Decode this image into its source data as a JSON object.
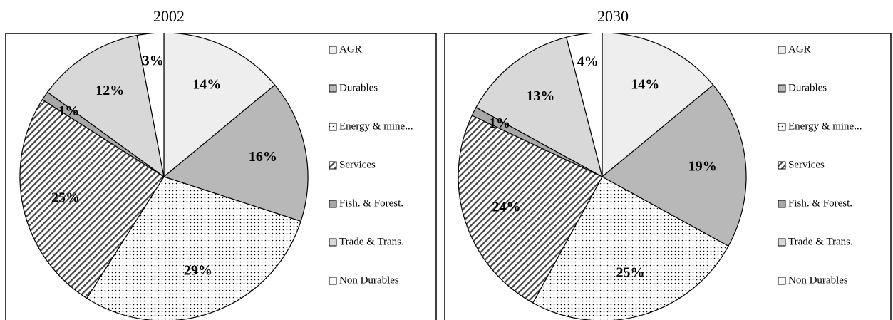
{
  "chart_data": [
    {
      "type": "pie",
      "title": "2002",
      "categories": [
        "AGR",
        "Durables",
        "Energy & mine...",
        "Services",
        "Fish. & Forest.",
        "Trade & Trans.",
        "Non Durables"
      ],
      "values": [
        14,
        16,
        29,
        25,
        1,
        12,
        3
      ],
      "value_labels": [
        "14%",
        "16%",
        "29%",
        "25%",
        "1%",
        "12%",
        "3%"
      ],
      "colors": [
        "#eeeeee",
        "#b8b8b8",
        "#ffffff",
        "#ffffff",
        "#a8a8a8",
        "#d8d8d8",
        "#ffffff"
      ],
      "patterns": [
        "solid",
        "solid",
        "dots",
        "hatch",
        "solid",
        "solid",
        "solid"
      ],
      "legend": "right"
    },
    {
      "type": "pie",
      "title": "2030",
      "categories": [
        "AGR",
        "Durables",
        "Energy & mine...",
        "Services",
        "Fish. & Forest.",
        "Trade & Trans.",
        "Non Durables"
      ],
      "values": [
        14,
        19,
        25,
        24,
        1,
        13,
        4
      ],
      "value_labels": [
        "14%",
        "19%",
        "25%",
        "24%",
        "1%",
        "13%",
        "4%"
      ],
      "colors": [
        "#eeeeee",
        "#b8b8b8",
        "#ffffff",
        "#ffffff",
        "#a8a8a8",
        "#d8d8d8",
        "#ffffff"
      ],
      "patterns": [
        "solid",
        "solid",
        "dots",
        "hatch",
        "solid",
        "solid",
        "solid"
      ],
      "legend": "right"
    }
  ]
}
